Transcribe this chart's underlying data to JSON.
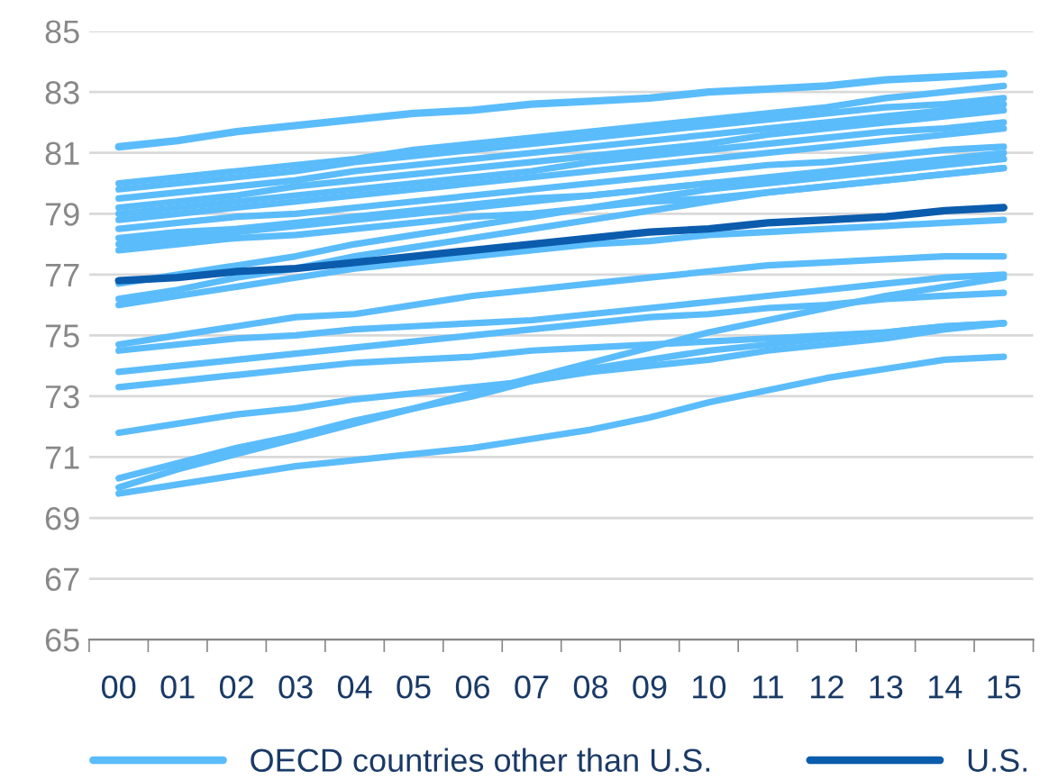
{
  "chart_data": {
    "type": "line",
    "categories": [
      "00",
      "01",
      "02",
      "03",
      "04",
      "05",
      "06",
      "07",
      "08",
      "09",
      "10",
      "11",
      "12",
      "13",
      "14",
      "15"
    ],
    "ylim": [
      65,
      85
    ],
    "yticks": [
      65,
      67,
      69,
      71,
      73,
      75,
      77,
      79,
      81,
      83,
      85
    ],
    "grid": "y",
    "legend": "bottom",
    "marker": "none",
    "line_style": "solid",
    "series": [
      {
        "name": "OECD countries other than U.S.",
        "color": "#5bbcfb",
        "values": [
          81.2,
          81.4,
          81.7,
          81.9,
          82.1,
          82.3,
          82.4,
          82.6,
          82.7,
          82.8,
          83.0,
          83.1,
          83.2,
          83.4,
          83.5,
          83.6
        ]
      },
      {
        "color": "#5bbcfb",
        "values": [
          80.0,
          80.2,
          80.4,
          80.6,
          80.8,
          81.1,
          81.3,
          81.5,
          81.7,
          81.9,
          82.1,
          82.3,
          82.5,
          82.8,
          83.0,
          83.2
        ]
      },
      {
        "color": "#5bbcfb",
        "values": [
          79.8,
          80.0,
          80.2,
          80.4,
          80.7,
          80.9,
          81.1,
          81.3,
          81.5,
          81.7,
          81.9,
          82.1,
          82.3,
          82.5,
          82.6,
          82.8
        ]
      },
      {
        "color": "#5bbcfb",
        "values": [
          79.5,
          79.7,
          79.9,
          80.1,
          80.4,
          80.6,
          80.8,
          81.0,
          81.2,
          81.4,
          81.6,
          81.8,
          82.0,
          82.2,
          82.4,
          82.6
        ]
      },
      {
        "color": "#5bbcfb",
        "values": [
          79.2,
          79.4,
          79.6,
          79.9,
          80.1,
          80.3,
          80.5,
          80.7,
          80.9,
          81.1,
          81.3,
          81.6,
          81.8,
          82.0,
          82.2,
          82.4
        ]
      },
      {
        "color": "#5bbcfb",
        "values": [
          79.0,
          79.2,
          79.4,
          79.6,
          79.8,
          80.0,
          80.2,
          80.4,
          80.7,
          80.9,
          81.1,
          81.3,
          81.5,
          81.7,
          81.8,
          82.0
        ]
      },
      {
        "color": "#5bbcfb",
        "values": [
          78.8,
          79.0,
          79.2,
          79.4,
          79.6,
          79.8,
          80.0,
          80.2,
          80.4,
          80.6,
          80.8,
          81.0,
          81.2,
          81.4,
          81.6,
          81.8
        ]
      },
      {
        "color": "#5bbcfb",
        "values": [
          78.5,
          78.7,
          78.9,
          79.0,
          79.2,
          79.4,
          79.6,
          79.8,
          80.0,
          80.2,
          80.4,
          80.6,
          80.7,
          80.9,
          81.1,
          81.2
        ]
      },
      {
        "color": "#5bbcfb",
        "values": [
          78.2,
          78.4,
          78.5,
          78.7,
          78.9,
          79.1,
          79.3,
          79.5,
          79.6,
          79.8,
          80.0,
          80.1,
          80.3,
          80.5,
          80.7,
          80.8
        ]
      },
      {
        "color": "#5bbcfb",
        "values": [
          78.0,
          78.2,
          78.4,
          78.6,
          78.8,
          79.0,
          79.2,
          79.4,
          79.6,
          79.8,
          80.0,
          80.2,
          80.4,
          80.6,
          80.8,
          81.0
        ]
      },
      {
        "color": "#5bbcfb",
        "values": [
          77.8,
          78.0,
          78.2,
          78.3,
          78.5,
          78.7,
          78.9,
          79.0,
          79.2,
          79.4,
          79.5,
          79.7,
          79.9,
          80.1,
          80.3,
          80.5
        ]
      },
      {
        "color": "#5bbcfb",
        "values": [
          76.7,
          77.0,
          77.3,
          77.6,
          78.0,
          78.3,
          78.6,
          78.9,
          79.2,
          79.5,
          79.8,
          80.0,
          80.2,
          80.4,
          80.6,
          80.8
        ]
      },
      {
        "color": "#5bbcfb",
        "values": [
          76.2,
          76.5,
          76.9,
          77.2,
          77.6,
          77.9,
          78.2,
          78.5,
          78.8,
          79.1,
          79.4,
          79.7,
          79.9,
          80.1,
          80.3,
          80.5
        ]
      },
      {
        "color": "#5bbcfb",
        "values": [
          76.0,
          76.3,
          76.6,
          76.9,
          77.2,
          77.4,
          77.6,
          77.8,
          78.0,
          78.1,
          78.3,
          78.4,
          78.5,
          78.6,
          78.7,
          78.8
        ]
      },
      {
        "color": "#5bbcfb",
        "values": [
          74.7,
          75.0,
          75.3,
          75.6,
          75.7,
          76.0,
          76.3,
          76.5,
          76.7,
          76.9,
          77.1,
          77.3,
          77.4,
          77.5,
          77.6,
          77.6
        ]
      },
      {
        "color": "#5bbcfb",
        "values": [
          74.5,
          74.7,
          74.9,
          75.0,
          75.2,
          75.3,
          75.4,
          75.5,
          75.7,
          75.9,
          76.1,
          76.3,
          76.5,
          76.7,
          76.9,
          77.0
        ]
      },
      {
        "color": "#5bbcfb",
        "values": [
          73.8,
          74.0,
          74.2,
          74.4,
          74.6,
          74.8,
          75.0,
          75.2,
          75.4,
          75.6,
          75.7,
          75.9,
          76.0,
          76.2,
          76.3,
          76.4
        ]
      },
      {
        "color": "#5bbcfb",
        "values": [
          73.3,
          73.5,
          73.7,
          73.9,
          74.1,
          74.2,
          74.3,
          74.5,
          74.6,
          74.7,
          74.8,
          74.9,
          75.0,
          75.1,
          75.3,
          75.4
        ]
      },
      {
        "color": "#5bbcfb",
        "values": [
          71.8,
          72.1,
          72.4,
          72.6,
          72.9,
          73.1,
          73.3,
          73.5,
          73.8,
          74.0,
          74.2,
          74.5,
          74.7,
          74.9,
          75.2,
          75.4
        ]
      },
      {
        "color": "#5bbcfb",
        "values": [
          70.3,
          70.8,
          71.3,
          71.7,
          72.2,
          72.6,
          73.1,
          73.6,
          74.1,
          74.6,
          75.1,
          75.5,
          75.9,
          76.3,
          76.6,
          76.9
        ]
      },
      {
        "color": "#5bbcfb",
        "values": [
          70.0,
          70.6,
          71.1,
          71.6,
          72.1,
          72.6,
          73.0,
          73.5,
          73.9,
          74.2,
          74.5,
          74.7,
          74.9,
          75.1,
          75.3,
          75.4
        ]
      },
      {
        "color": "#5bbcfb",
        "values": [
          69.8,
          70.1,
          70.4,
          70.7,
          70.9,
          71.1,
          71.3,
          71.6,
          71.9,
          72.3,
          72.8,
          73.2,
          73.6,
          73.9,
          74.2,
          74.3
        ]
      },
      {
        "name": "U.S.",
        "color": "#0b5cad",
        "values": [
          76.8,
          76.9,
          77.1,
          77.2,
          77.4,
          77.6,
          77.8,
          78.0,
          78.2,
          78.4,
          78.5,
          78.7,
          78.8,
          78.9,
          79.1,
          79.2
        ]
      }
    ]
  }
}
